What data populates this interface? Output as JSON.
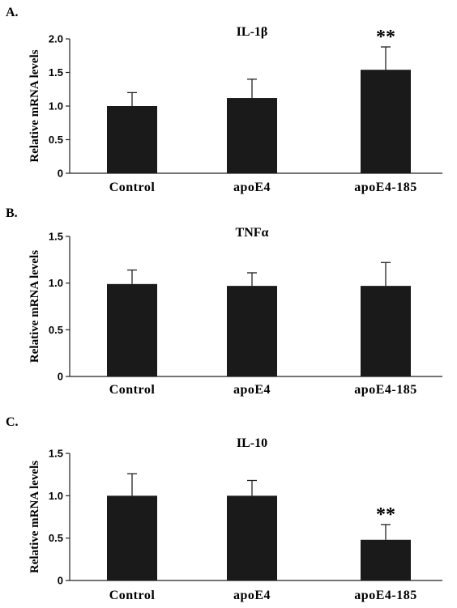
{
  "chart_data": [
    {
      "type": "bar",
      "panel_label": "A.",
      "title": "IL-1β",
      "ylabel": "Relative mRNA levels",
      "xlabel": "",
      "categories": [
        "Control",
        "apoE4",
        "apoE4-185"
      ],
      "values": [
        1.0,
        1.12,
        1.54
      ],
      "error": [
        0.2,
        0.28,
        0.34
      ],
      "significance": [
        "",
        "",
        "**"
      ],
      "ylim": [
        0,
        2.0
      ],
      "yticks": [
        0,
        0.5,
        1.0,
        1.5,
        2.0
      ],
      "ytick_labels": [
        "0",
        "0.5",
        "1.0",
        "1.5",
        "2.0"
      ],
      "grid": false,
      "bar_color": "#1a1a1a"
    },
    {
      "type": "bar",
      "panel_label": "B.",
      "title": "TNFα",
      "ylabel": "Relative mRNA levels",
      "xlabel": "",
      "categories": [
        "Control",
        "apoE4",
        "apoE4-185"
      ],
      "values": [
        0.99,
        0.97,
        0.97
      ],
      "error": [
        0.15,
        0.14,
        0.25
      ],
      "significance": [
        "",
        "",
        ""
      ],
      "ylim": [
        0,
        1.5
      ],
      "yticks": [
        0,
        0.5,
        1.0,
        1.5
      ],
      "ytick_labels": [
        "0",
        "0.5",
        "1.0",
        "1.5"
      ],
      "grid": false,
      "bar_color": "#1a1a1a"
    },
    {
      "type": "bar",
      "panel_label": "C.",
      "title": "IL-10",
      "ylabel": "Relative mRNA levels",
      "xlabel": "",
      "categories": [
        "Control",
        "apoE4",
        "apoE4-185"
      ],
      "values": [
        1.0,
        1.0,
        0.48
      ],
      "error": [
        0.26,
        0.18,
        0.18
      ],
      "significance": [
        "",
        "",
        "**"
      ],
      "ylim": [
        0,
        1.5
      ],
      "yticks": [
        0,
        0.5,
        1.0,
        1.5
      ],
      "ytick_labels": [
        "0",
        "0.5",
        "1.0",
        "1.5"
      ],
      "grid": false,
      "bar_color": "#1a1a1a"
    }
  ]
}
